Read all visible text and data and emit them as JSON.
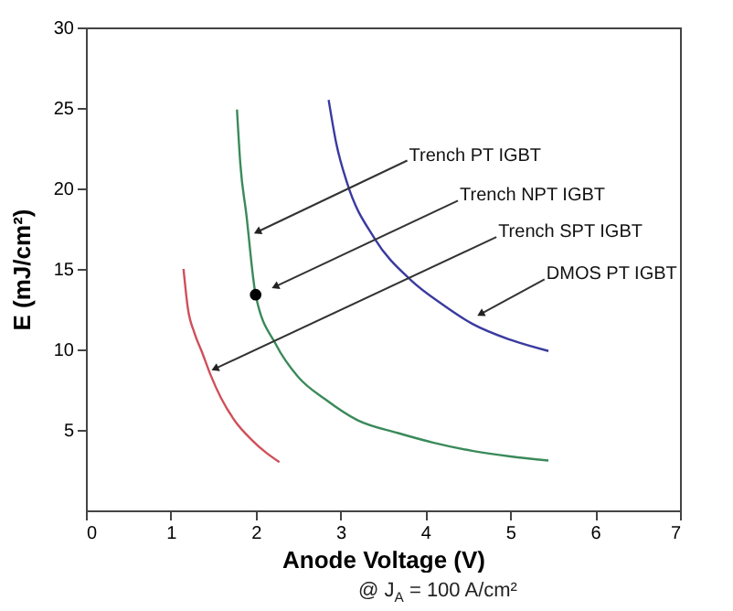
{
  "chart_data": {
    "type": "line",
    "xlabel": "Anode Voltage (V)",
    "ylabel": "E (mJ/cm²)",
    "xlim": [
      0,
      7
    ],
    "xticks": [
      0,
      1,
      2,
      3,
      4,
      5,
      6,
      7
    ],
    "ylim": [
      0,
      30
    ],
    "yticks": [
      5,
      10,
      15,
      20,
      25,
      30
    ],
    "grid": false,
    "series": [
      {
        "color": "#d0505a",
        "x": [
          1.15,
          1.2,
          1.28,
          1.37,
          1.47,
          1.59,
          1.75,
          1.95,
          2.12,
          2.28
        ],
        "values": [
          15,
          12.6,
          11.0,
          9.8,
          8.4,
          7.0,
          5.6,
          4.4,
          3.6,
          3.0
        ]
      },
      {
        "color": "#3a8a5a",
        "x": [
          1.78,
          1.82,
          1.89,
          2.0,
          2.24,
          2.5,
          2.82,
          3.2,
          3.68,
          4.1,
          4.55,
          5.0,
          5.45
        ],
        "values": [
          24.9,
          21.5,
          18.4,
          13.4,
          10.3,
          8.3,
          6.9,
          5.6,
          4.8,
          4.2,
          3.7,
          3.35,
          3.1
        ]
      },
      {
        "color": "#3a3aa0",
        "x": [
          2.86,
          2.95,
          3.08,
          3.4,
          3.83,
          4.2,
          4.55,
          5.0,
          5.45
        ],
        "values": [
          25.5,
          22.8,
          20.3,
          16.9,
          14.3,
          12.8,
          11.6,
          10.6,
          9.9
        ]
      },
      {
        "type": "scatter",
        "color": "#000000",
        "x": [
          2.0
        ],
        "values": [
          13.4
        ]
      }
    ],
    "annotations": [
      {
        "text": "Trench PT IGBT",
        "x": 2.02,
        "y": 17.3
      },
      {
        "text": "Trench NPT IGBT",
        "x": 2.23,
        "y": 13.9
      },
      {
        "text": "Trench SPT IGBT",
        "x": 1.52,
        "y": 8.8
      },
      {
        "text": "DMOS PT IGBT",
        "x": 4.65,
        "y": 12.2
      },
      "@ J$_{A}$ = 100 A/cm²"
    ]
  }
}
